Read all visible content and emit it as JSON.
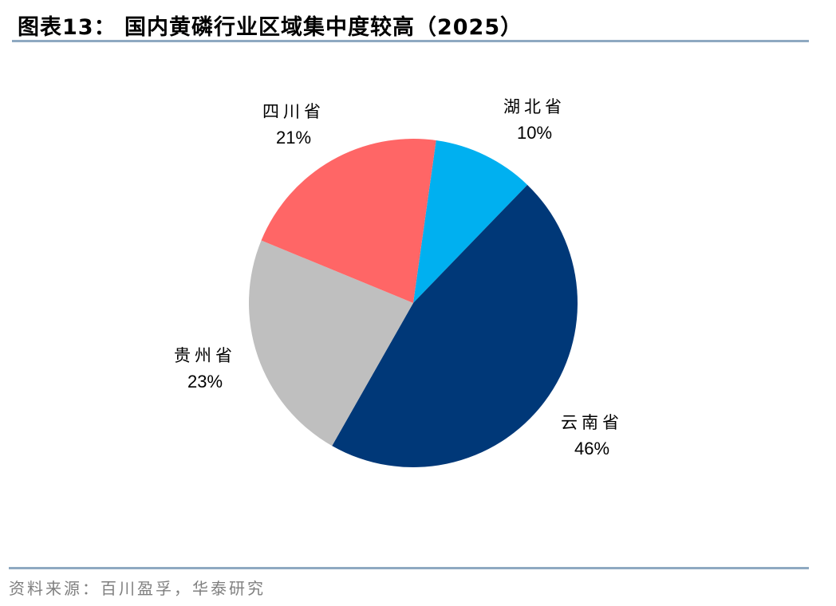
{
  "header": {
    "title": "图表13：  国内黄磷行业区域集中度较高（2025）"
  },
  "footer": {
    "source": "资料来源：百川盈孚，华泰研究"
  },
  "colors": {
    "hubei": "#00B0F0",
    "yunnan": "#003878",
    "guizhou": "#BFBFBF",
    "sichuan": "#FF6666",
    "rule": "#8EA9C1"
  },
  "labels": {
    "hubei": {
      "name": "湖北省",
      "pct": "10%"
    },
    "yunnan": {
      "name": "云南省",
      "pct": "46%"
    },
    "guizhou": {
      "name": "贵州省",
      "pct": "23%"
    },
    "sichuan": {
      "name": "四川省",
      "pct": "21%"
    }
  },
  "chart_data": {
    "type": "pie",
    "title": "国内黄磷行业区域集中度较高（2025）",
    "categories": [
      "湖北省",
      "云南省",
      "贵州省",
      "四川省"
    ],
    "values": [
      10,
      46,
      23,
      21
    ],
    "unit": "%",
    "colors": [
      "#00B0F0",
      "#003878",
      "#BFBFBF",
      "#FF6666"
    ],
    "start_angle_deg_clockwise_from_top": 8,
    "direction": "clockwise",
    "legend": "none (data labels with category name and percentage)",
    "source": "资料来源：百川盈孚，华泰研究"
  }
}
